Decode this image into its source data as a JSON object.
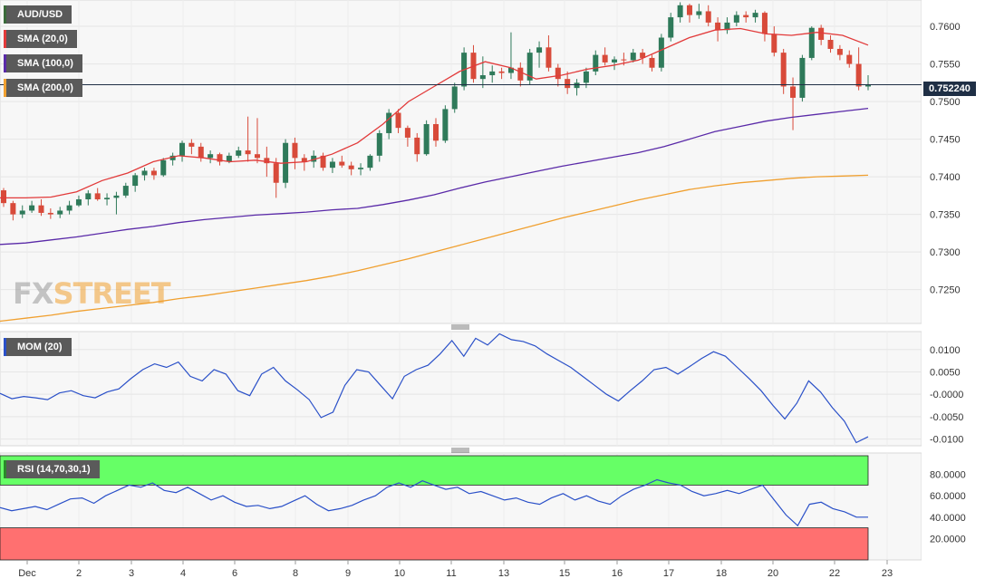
{
  "chart_data": [
    {
      "type": "candlestick",
      "title": "AUD/USD",
      "last_price": "0.752240",
      "y_ticks": [
        "0.7600",
        "0.7550",
        "0.7500",
        "0.7450",
        "0.7400",
        "0.7350",
        "0.7300",
        "0.7250"
      ],
      "ylim": [
        0.7205,
        0.7635
      ],
      "x_ticks": [
        "Dec",
        "2",
        "3",
        "4",
        "6",
        "8",
        "9",
        "10",
        "11",
        "13",
        "15",
        "16",
        "17",
        "18",
        "20",
        "22",
        "23"
      ],
      "candles": [
        [
          0.7382,
          0.7385,
          0.736,
          0.7365
        ],
        [
          0.7365,
          0.7368,
          0.7342,
          0.735
        ],
        [
          0.735,
          0.7362,
          0.7345,
          0.7355
        ],
        [
          0.7355,
          0.7368,
          0.7352,
          0.7362
        ],
        [
          0.7362,
          0.737,
          0.7348,
          0.7352
        ],
        [
          0.7352,
          0.7358,
          0.7344,
          0.735
        ],
        [
          0.735,
          0.736,
          0.7345,
          0.7355
        ],
        [
          0.7355,
          0.7368,
          0.735,
          0.7362
        ],
        [
          0.7362,
          0.7375,
          0.736,
          0.737
        ],
        [
          0.737,
          0.7382,
          0.7362,
          0.7378
        ],
        [
          0.7378,
          0.7385,
          0.7368,
          0.737
        ],
        [
          0.737,
          0.7378,
          0.7362,
          0.7372
        ],
        [
          0.7372,
          0.738,
          0.735,
          0.7375
        ],
        [
          0.7375,
          0.7392,
          0.7372,
          0.7388
        ],
        [
          0.7388,
          0.7405,
          0.738,
          0.7402
        ],
        [
          0.7402,
          0.7412,
          0.7395,
          0.7408
        ],
        [
          0.7408,
          0.7412,
          0.7396,
          0.7402
        ],
        [
          0.7402,
          0.7425,
          0.74,
          0.7422
        ],
        [
          0.7422,
          0.7432,
          0.7415,
          0.7428
        ],
        [
          0.7428,
          0.7448,
          0.742,
          0.7445
        ],
        [
          0.7445,
          0.745,
          0.743,
          0.744
        ],
        [
          0.744,
          0.7445,
          0.742,
          0.7425
        ],
        [
          0.7425,
          0.7435,
          0.7418,
          0.743
        ],
        [
          0.743,
          0.7432,
          0.7415,
          0.742
        ],
        [
          0.742,
          0.7432,
          0.7418,
          0.7428
        ],
        [
          0.7428,
          0.744,
          0.7425,
          0.7435
        ],
        [
          0.7435,
          0.748,
          0.742,
          0.743
        ],
        [
          0.743,
          0.7478,
          0.7418,
          0.7425
        ],
        [
          0.7425,
          0.744,
          0.74,
          0.7418
        ],
        [
          0.7418,
          0.7425,
          0.7372,
          0.7392
        ],
        [
          0.7392,
          0.745,
          0.7385,
          0.7445
        ],
        [
          0.7445,
          0.7452,
          0.741,
          0.7425
        ],
        [
          0.7425,
          0.743,
          0.7408,
          0.742
        ],
        [
          0.742,
          0.7435,
          0.7412,
          0.7428
        ],
        [
          0.7428,
          0.7432,
          0.7408,
          0.7412
        ],
        [
          0.7412,
          0.7425,
          0.7405,
          0.742
        ],
        [
          0.742,
          0.7428,
          0.7412,
          0.7415
        ],
        [
          0.7415,
          0.742,
          0.7402,
          0.741
        ],
        [
          0.741,
          0.7418,
          0.7402,
          0.7412
        ],
        [
          0.7412,
          0.743,
          0.7408,
          0.7428
        ],
        [
          0.7428,
          0.7462,
          0.742,
          0.7458
        ],
        [
          0.7458,
          0.749,
          0.745,
          0.7485
        ],
        [
          0.7485,
          0.749,
          0.7458,
          0.7465
        ],
        [
          0.7465,
          0.7468,
          0.744,
          0.7452
        ],
        [
          0.7452,
          0.7458,
          0.742,
          0.743
        ],
        [
          0.743,
          0.7475,
          0.7428,
          0.747
        ],
        [
          0.747,
          0.7478,
          0.744,
          0.7448
        ],
        [
          0.7448,
          0.7495,
          0.7445,
          0.749
        ],
        [
          0.749,
          0.7525,
          0.7485,
          0.752
        ],
        [
          0.752,
          0.7572,
          0.7515,
          0.7565
        ],
        [
          0.7565,
          0.7575,
          0.7525,
          0.753
        ],
        [
          0.753,
          0.756,
          0.7518,
          0.7535
        ],
        [
          0.7535,
          0.7548,
          0.7525,
          0.754
        ],
        [
          0.754,
          0.7545,
          0.753,
          0.7538
        ],
        [
          0.7538,
          0.7592,
          0.753,
          0.7545
        ],
        [
          0.7545,
          0.7552,
          0.752,
          0.7528
        ],
        [
          0.7528,
          0.757,
          0.7522,
          0.7565
        ],
        [
          0.7565,
          0.758,
          0.7545,
          0.7572
        ],
        [
          0.7572,
          0.7588,
          0.754,
          0.7545
        ],
        [
          0.7545,
          0.755,
          0.752,
          0.753
        ],
        [
          0.753,
          0.754,
          0.751,
          0.7518
        ],
        [
          0.7518,
          0.753,
          0.7508,
          0.7525
        ],
        [
          0.7525,
          0.7545,
          0.7518,
          0.754
        ],
        [
          0.754,
          0.7568,
          0.7535,
          0.7562
        ],
        [
          0.7562,
          0.7572,
          0.7548,
          0.7552
        ],
        [
          0.7552,
          0.756,
          0.7542,
          0.7556
        ],
        [
          0.7556,
          0.7565,
          0.7548,
          0.7555
        ],
        [
          0.7555,
          0.757,
          0.7552,
          0.7565
        ],
        [
          0.7565,
          0.757,
          0.755,
          0.7558
        ],
        [
          0.7558,
          0.7562,
          0.754,
          0.7545
        ],
        [
          0.7545,
          0.759,
          0.754,
          0.7585
        ],
        [
          0.7585,
          0.7618,
          0.758,
          0.7612
        ],
        [
          0.7612,
          0.7632,
          0.7605,
          0.7628
        ],
        [
          0.7628,
          0.763,
          0.7605,
          0.7615
        ],
        [
          0.7615,
          0.763,
          0.761,
          0.762
        ],
        [
          0.762,
          0.7628,
          0.76,
          0.7605
        ],
        [
          0.7605,
          0.7612,
          0.758,
          0.7595
        ],
        [
          0.7595,
          0.7612,
          0.759,
          0.7605
        ],
        [
          0.7605,
          0.762,
          0.76,
          0.7615
        ],
        [
          0.7615,
          0.762,
          0.7605,
          0.7612
        ],
        [
          0.7612,
          0.7622,
          0.7605,
          0.7618
        ],
        [
          0.7618,
          0.762,
          0.758,
          0.759
        ],
        [
          0.759,
          0.76,
          0.756,
          0.7565
        ],
        [
          0.7565,
          0.757,
          0.751,
          0.752
        ],
        [
          0.752,
          0.7532,
          0.7462,
          0.7505
        ],
        [
          0.7505,
          0.7562,
          0.75,
          0.7558
        ],
        [
          0.7558,
          0.76,
          0.7555,
          0.7598
        ],
        [
          0.7598,
          0.7602,
          0.7575,
          0.7582
        ],
        [
          0.7582,
          0.7588,
          0.7565,
          0.757
        ],
        [
          0.757,
          0.7575,
          0.7555,
          0.7562
        ],
        [
          0.7562,
          0.7568,
          0.7545,
          0.755
        ],
        [
          0.755,
          0.7572,
          0.7515,
          0.752
        ],
        [
          0.752,
          0.7535,
          0.7515,
          0.7522
        ]
      ],
      "series": [
        {
          "name": "SMA (20,0)",
          "color": "#e23a3a",
          "values": [
            0.7372,
            0.7372,
            0.7373,
            0.738,
            0.7395,
            0.7405,
            0.742,
            0.7428,
            0.7425,
            0.742,
            0.7422,
            0.7418,
            0.742,
            0.743,
            0.7445,
            0.747,
            0.75,
            0.752,
            0.754,
            0.7553,
            0.7545,
            0.753,
            0.7535,
            0.7543,
            0.7548,
            0.7555,
            0.757,
            0.7585,
            0.7595,
            0.7597,
            0.759,
            0.7588,
            0.7592,
            0.7588,
            0.7575
          ]
        },
        {
          "name": "SMA (100,0)",
          "color": "#5a2aa8",
          "values": [
            0.731,
            0.7312,
            0.7316,
            0.732,
            0.7325,
            0.733,
            0.7334,
            0.7339,
            0.7343,
            0.7346,
            0.7349,
            0.7351,
            0.7353,
            0.7356,
            0.7358,
            0.7363,
            0.7369,
            0.7376,
            0.7385,
            0.7393,
            0.74,
            0.7407,
            0.7414,
            0.742,
            0.7426,
            0.7432,
            0.744,
            0.745,
            0.746,
            0.7467,
            0.7474,
            0.7479,
            0.7483,
            0.7487,
            0.7491
          ]
        },
        {
          "name": "SMA (200,0)",
          "color": "#f0a030",
          "values": [
            0.7208,
            0.7212,
            0.7216,
            0.7221,
            0.7225,
            0.7229,
            0.7233,
            0.7238,
            0.7242,
            0.7247,
            0.7252,
            0.7257,
            0.7262,
            0.7268,
            0.7275,
            0.7283,
            0.7291,
            0.73,
            0.7309,
            0.7318,
            0.7327,
            0.7336,
            0.7345,
            0.7353,
            0.7361,
            0.7369,
            0.7376,
            0.7383,
            0.7388,
            0.7392,
            0.7395,
            0.7398,
            0.74,
            0.7401,
            0.7402
          ]
        }
      ]
    },
    {
      "type": "line",
      "title": "MOM (20)",
      "y_ticks": [
        "0.0100",
        "0.0050",
        "-0.0000",
        "-0.0050",
        "-0.0100"
      ],
      "ylim": [
        -0.0115,
        0.014
      ],
      "series": [
        {
          "name": "MOM (20)",
          "color": "#2a50c8",
          "values": [
            0.0002,
            -0.001,
            -0.0005,
            -0.0008,
            -0.0012,
            0.0003,
            0.0008,
            -0.0003,
            -0.0008,
            0.0005,
            0.0012,
            0.0035,
            0.0055,
            0.0068,
            0.006,
            0.0072,
            0.004,
            0.003,
            0.0055,
            0.0045,
            0.0008,
            -0.0003,
            0.0045,
            0.006,
            0.003,
            0.001,
            -0.0012,
            -0.0052,
            -0.004,
            0.002,
            0.0055,
            0.005,
            0.002,
            -0.001,
            0.004,
            0.0055,
            0.0065,
            0.009,
            0.012,
            0.0085,
            0.0125,
            0.011,
            0.0135,
            0.0122,
            0.0118,
            0.0108,
            0.009,
            0.0075,
            0.006,
            0.004,
            0.002,
            0.0,
            -0.0015,
            0.0008,
            0.003,
            0.0055,
            0.006,
            0.0045,
            0.0062,
            0.008,
            0.0095,
            0.0085,
            0.006,
            0.0035,
            0.0008,
            -0.0025,
            -0.0055,
            -0.002,
            0.003,
            0.0005,
            -0.003,
            -0.006,
            -0.0108,
            -0.0095
          ]
        }
      ]
    },
    {
      "type": "line",
      "title": "RSI (14,70,30,1)",
      "y_ticks": [
        "80.0000",
        "60.0000",
        "40.0000",
        "20.0000"
      ],
      "ylim": [
        0,
        100
      ],
      "bands": {
        "upper": 70,
        "lower": 30,
        "upper_color": "#66ff66",
        "lower_color": "#ff7070"
      },
      "series": [
        {
          "name": "RSI (14,70,30,1)",
          "color": "#2a50c8",
          "values": [
            49,
            46,
            48,
            50,
            47,
            52,
            57,
            58,
            53,
            60,
            65,
            70,
            68,
            72,
            65,
            63,
            68,
            62,
            56,
            60,
            54,
            50,
            51,
            48,
            50,
            55,
            60,
            52,
            46,
            48,
            51,
            56,
            60,
            68,
            72,
            68,
            74,
            70,
            66,
            68,
            62,
            64,
            60,
            56,
            58,
            54,
            52,
            58,
            62,
            56,
            60,
            55,
            52,
            60,
            66,
            70,
            75,
            72,
            70,
            64,
            60,
            62,
            65,
            62,
            66,
            70,
            56,
            42,
            32,
            52,
            54,
            48,
            45,
            40,
            40
          ]
        }
      ]
    }
  ]
}
